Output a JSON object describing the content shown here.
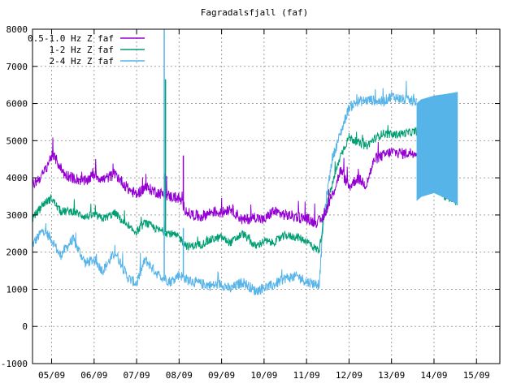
{
  "chart_data": {
    "type": "line",
    "title": "Fagradalsfjall (faf)",
    "xlabel": "",
    "ylabel": "",
    "ylim": [
      -1000,
      8000
    ],
    "xlim": [
      4.55,
      15.55
    ],
    "y_ticks": [
      -1000,
      0,
      1000,
      2000,
      3000,
      4000,
      5000,
      6000,
      7000,
      8000
    ],
    "x_ticks": [
      {
        "label": "05/09",
        "x": 5.0
      },
      {
        "label": "06/09",
        "x": 6.0
      },
      {
        "label": "07/09",
        "x": 7.0
      },
      {
        "label": "08/09",
        "x": 8.0
      },
      {
        "label": "09/09",
        "x": 9.0
      },
      {
        "label": "10/09",
        "x": 10.0
      },
      {
        "label": "11/09",
        "x": 11.0
      },
      {
        "label": "12/09",
        "x": 12.0
      },
      {
        "label": "13/09",
        "x": 13.0
      },
      {
        "label": "14/09",
        "x": 14.0
      },
      {
        "label": "15/09",
        "x": 15.0
      }
    ],
    "grid": true,
    "legend_position": "top-left",
    "series": [
      {
        "name": "0.5-1.0 Hz Z faf",
        "color": "#9400d3",
        "noise": 150,
        "x": [
          4.55,
          4.8,
          5.0,
          5.1,
          5.3,
          5.5,
          5.8,
          6.0,
          6.2,
          6.5,
          6.8,
          7.0,
          7.2,
          7.5,
          7.8,
          8.0,
          8.2,
          8.5,
          8.8,
          9.0,
          9.2,
          9.5,
          9.8,
          10.0,
          10.2,
          10.5,
          10.8,
          11.0,
          11.2,
          11.35,
          11.45,
          11.6,
          11.8,
          12.0,
          12.2,
          12.4,
          12.6,
          12.8,
          13.0,
          13.3,
          13.6
        ],
        "y": [
          3800,
          4100,
          4600,
          4500,
          4100,
          4000,
          3900,
          4100,
          3950,
          4100,
          3700,
          3550,
          3750,
          3600,
          3500,
          3450,
          3050,
          2950,
          3100,
          3050,
          3200,
          2850,
          2950,
          2850,
          3100,
          3000,
          2950,
          2900,
          2800,
          2850,
          3100,
          3500,
          4200,
          3750,
          4000,
          3800,
          4500,
          4600,
          4700,
          4650,
          4700
        ]
      },
      {
        "name": "1-2 Hz Z faf",
        "color": "#009e73",
        "noise": 110,
        "x": [
          4.55,
          4.8,
          5.0,
          5.2,
          5.5,
          5.8,
          6.0,
          6.2,
          6.5,
          6.8,
          7.0,
          7.2,
          7.5,
          7.8,
          8.0,
          8.2,
          8.5,
          8.8,
          9.0,
          9.2,
          9.5,
          9.8,
          10.0,
          10.2,
          10.5,
          10.8,
          11.0,
          11.2,
          11.3,
          11.4,
          11.6,
          11.8,
          12.0,
          12.2,
          12.4,
          12.6,
          12.8,
          13.0,
          13.3,
          13.6,
          13.7,
          13.9,
          14.0,
          14.1,
          14.3,
          14.55
        ],
        "y": [
          2900,
          3300,
          3450,
          3100,
          3100,
          2950,
          3000,
          2900,
          3050,
          2650,
          2550,
          2800,
          2600,
          2500,
          2400,
          2150,
          2200,
          2350,
          2400,
          2250,
          2500,
          2150,
          2300,
          2250,
          2450,
          2400,
          2300,
          2100,
          2050,
          2900,
          3800,
          4600,
          5100,
          4950,
          4850,
          5050,
          5200,
          5150,
          5200,
          5250,
          3600,
          3650,
          3950,
          3700,
          3450,
          3350
        ]
      },
      {
        "name": "2-4 Hz Z faf",
        "color": "#56b4e9",
        "noise": 140,
        "x": [
          4.55,
          4.8,
          5.0,
          5.2,
          5.5,
          5.8,
          6.0,
          6.2,
          6.5,
          6.8,
          7.0,
          7.2,
          7.5,
          7.8,
          8.0,
          8.2,
          8.5,
          8.8,
          9.0,
          9.2,
          9.5,
          9.8,
          10.0,
          10.2,
          10.5,
          10.8,
          11.0,
          11.2,
          11.3,
          11.4,
          11.6,
          11.8,
          12.0,
          12.2,
          12.5,
          12.8,
          13.0,
          13.3,
          13.6
        ],
        "y": [
          2200,
          2600,
          2350,
          1900,
          2350,
          1700,
          1800,
          1500,
          2000,
          1300,
          1150,
          1800,
          1400,
          1200,
          1400,
          1250,
          1150,
          1100,
          1150,
          1000,
          1200,
          950,
          1050,
          1100,
          1300,
          1350,
          1200,
          1150,
          1150,
          2900,
          4500,
          5200,
          5900,
          6050,
          6100,
          6050,
          6200,
          6100,
          6050
        ]
      }
    ],
    "annotations": [
      {
        "series": "2-4 Hz Z faf",
        "x": 7.65,
        "y": 8000
      },
      {
        "series": "1-2 Hz Z faf",
        "x": 7.68,
        "y": 6650
      },
      {
        "series": "0.5-1.0 Hz Z faf",
        "x": 8.1,
        "y": 4600
      },
      {
        "series": "2-4 Hz Z faf",
        "x": 8.1,
        "y": 2650
      }
    ],
    "band": {
      "series": "2-4 Hz Z faf",
      "color": "#56b4e9",
      "x": [
        13.6,
        13.7,
        14.0,
        14.3,
        14.55
      ],
      "y_top": [
        6000,
        6100,
        6200,
        6250,
        6300
      ],
      "y_bottom": [
        3400,
        3500,
        3600,
        3450,
        3300
      ]
    }
  }
}
